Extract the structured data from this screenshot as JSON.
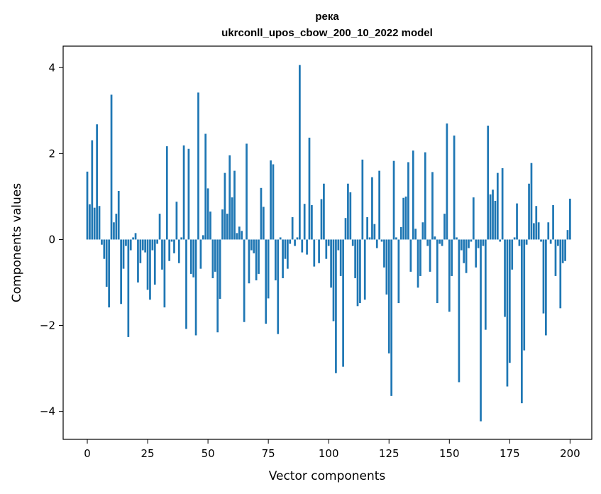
{
  "chart_data": {
    "type": "bar",
    "title_line1": "река",
    "title_line2": "ukrconll_upos_cbow_200_10_2022 model",
    "xlabel": "Vector components",
    "ylabel": "Components values",
    "xlim": [
      -10,
      209
    ],
    "ylim": [
      -4.65,
      4.5
    ],
    "x_ticks": [
      0,
      25,
      50,
      75,
      100,
      125,
      150,
      175,
      200
    ],
    "y_ticks": [
      -4,
      -2,
      0,
      2,
      4
    ],
    "y_tick_labels": [
      "−4",
      "−2",
      "0",
      "2",
      "4"
    ],
    "bar_color": "#1f77b4",
    "grid": false,
    "values": [
      1.58,
      0.82,
      2.31,
      0.74,
      2.68,
      0.78,
      -0.12,
      -0.45,
      -1.1,
      -1.58,
      3.37,
      0.4,
      0.6,
      1.13,
      -1.5,
      -0.68,
      -0.15,
      -2.27,
      -0.25,
      0.05,
      0.15,
      -1.0,
      -0.55,
      -0.25,
      -0.3,
      -1.17,
      -1.4,
      -0.25,
      -1.05,
      -0.1,
      0.6,
      -0.7,
      -1.58,
      2.17,
      -0.5,
      -0.05,
      -0.32,
      0.88,
      -0.55,
      0.05,
      2.19,
      -2.08,
      2.11,
      -0.8,
      -0.88,
      -2.23,
      3.42,
      -0.68,
      0.1,
      2.46,
      1.19,
      0.65,
      -0.9,
      -0.75,
      -2.16,
      -1.38,
      0.7,
      1.55,
      0.6,
      1.96,
      0.98,
      1.6,
      0.15,
      0.3,
      0.2,
      -1.92,
      2.23,
      -1.02,
      -0.25,
      -0.32,
      -0.95,
      -0.8,
      1.2,
      0.76,
      -1.96,
      -1.37,
      1.84,
      1.75,
      -0.95,
      -2.2,
      0.05,
      -0.9,
      -0.45,
      -0.68,
      -0.1,
      0.52,
      -0.15,
      0.05,
      4.06,
      -0.3,
      0.83,
      -0.35,
      2.37,
      0.8,
      -0.63,
      0.0,
      -0.55,
      0.94,
      1.3,
      -0.45,
      -0.15,
      -1.12,
      -1.9,
      -3.11,
      -0.25,
      -0.85,
      -2.96,
      0.5,
      1.3,
      1.1,
      -0.15,
      -0.9,
      -1.55,
      -1.48,
      1.86,
      -1.4,
      0.52,
      0.05,
      1.45,
      0.36,
      -0.2,
      1.6,
      -0.05,
      -0.65,
      -1.28,
      -2.65,
      -3.64,
      1.83,
      0.05,
      -1.48,
      0.29,
      0.97,
      1.0,
      1.8,
      -0.75,
      2.07,
      0.25,
      -1.12,
      -0.85,
      0.4,
      2.03,
      -0.15,
      -0.75,
      1.57,
      0.07,
      -1.48,
      -0.1,
      -0.15,
      0.6,
      2.7,
      -1.68,
      -0.85,
      2.42,
      0.05,
      -3.32,
      -0.25,
      -0.55,
      -0.78,
      -0.2,
      -0.05,
      0.98,
      -0.65,
      -0.2,
      -4.23,
      -0.15,
      -2.1,
      2.65,
      1.05,
      1.16,
      0.9,
      1.55,
      -0.05,
      1.66,
      -1.8,
      -3.42,
      -2.87,
      -0.7,
      0.05,
      0.84,
      -0.15,
      -3.81,
      -2.58,
      -0.12,
      1.3,
      1.78,
      0.38,
      0.78,
      0.4,
      -0.05,
      -1.72,
      -2.23,
      0.4,
      -0.1,
      0.8,
      -0.85,
      -0.15,
      -1.6,
      -0.55,
      -0.5,
      0.22,
      0.95
    ]
  }
}
